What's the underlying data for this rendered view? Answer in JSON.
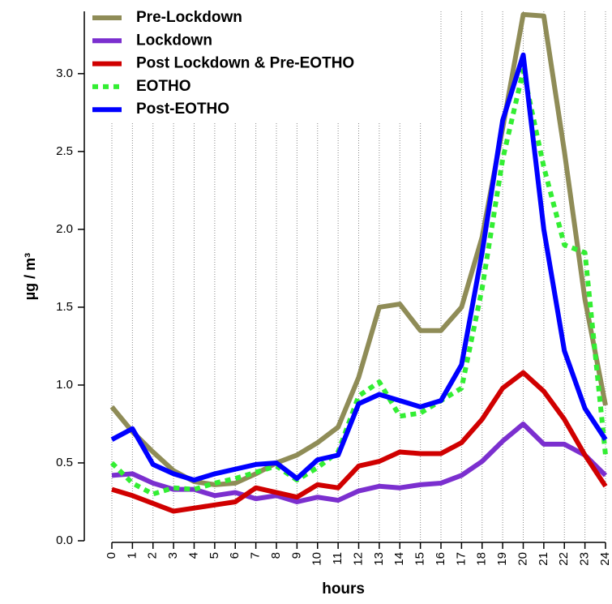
{
  "chart_data": {
    "type": "line",
    "xlabel": "hours",
    "ylabel": "µg / m³",
    "x": [
      0,
      1,
      2,
      3,
      4,
      5,
      6,
      7,
      8,
      9,
      10,
      11,
      12,
      13,
      14,
      15,
      16,
      17,
      18,
      19,
      20,
      21,
      22,
      23,
      24
    ],
    "xlim": [
      0,
      24
    ],
    "ylim": [
      0,
      3.4
    ],
    "xticks": [
      0,
      1,
      2,
      3,
      4,
      5,
      6,
      7,
      8,
      9,
      10,
      11,
      12,
      13,
      14,
      15,
      16,
      17,
      18,
      19,
      20,
      21,
      22,
      23,
      24
    ],
    "yticks": [
      {
        "value": 0,
        "label": "0.0"
      },
      0.5,
      {
        "value": 1,
        "label": "1.0"
      },
      1.5,
      {
        "value": 2,
        "label": "2.0"
      },
      2.5,
      {
        "value": 3,
        "label": "3.0"
      }
    ],
    "grid": "x",
    "legend": "upper left",
    "series": [
      {
        "name": "Pre-Lockdown",
        "color": "#8f8c57",
        "style": "solid",
        "values": [
          0.86,
          0.7,
          0.57,
          0.45,
          0.38,
          0.36,
          0.37,
          0.43,
          0.5,
          0.55,
          0.63,
          0.73,
          1.05,
          1.5,
          1.52,
          1.35,
          1.35,
          1.5,
          1.95,
          2.65,
          3.38,
          3.37,
          2.5,
          1.55,
          0.87
        ]
      },
      {
        "name": "Lockdown",
        "color": "#7b2fcf",
        "style": "solid",
        "values": [
          0.42,
          0.43,
          0.37,
          0.33,
          0.33,
          0.29,
          0.31,
          0.27,
          0.29,
          0.25,
          0.28,
          0.26,
          0.32,
          0.35,
          0.34,
          0.36,
          0.37,
          0.42,
          0.51,
          0.64,
          0.75,
          0.62,
          0.62,
          0.55,
          0.42
        ]
      },
      {
        "name": "Post Lockdown & Pre-EOTHO",
        "color": "#d00000",
        "style": "solid",
        "values": [
          0.33,
          0.29,
          0.24,
          0.19,
          0.21,
          0.23,
          0.25,
          0.34,
          0.31,
          0.28,
          0.36,
          0.34,
          0.48,
          0.51,
          0.57,
          0.56,
          0.56,
          0.63,
          0.78,
          0.98,
          1.08,
          0.96,
          0.78,
          0.55,
          0.35
        ]
      },
      {
        "name": "EOTHO",
        "color": "#33ee33",
        "style": "dotted",
        "values": [
          0.5,
          0.37,
          0.3,
          0.34,
          0.33,
          0.37,
          0.4,
          0.44,
          0.48,
          0.39,
          0.47,
          0.57,
          0.93,
          1.02,
          0.8,
          0.82,
          0.9,
          0.98,
          1.62,
          2.45,
          3.02,
          2.4,
          1.9,
          1.85,
          0.55
        ]
      },
      {
        "name": "Post-EOTHO",
        "color": "#0000ff",
        "style": "solid",
        "values": [
          0.65,
          0.72,
          0.49,
          0.43,
          0.39,
          0.43,
          0.46,
          0.49,
          0.5,
          0.4,
          0.52,
          0.55,
          0.88,
          0.94,
          0.9,
          0.86,
          0.9,
          1.13,
          1.85,
          2.7,
          3.12,
          2.0,
          1.22,
          0.85,
          0.65
        ]
      }
    ]
  }
}
